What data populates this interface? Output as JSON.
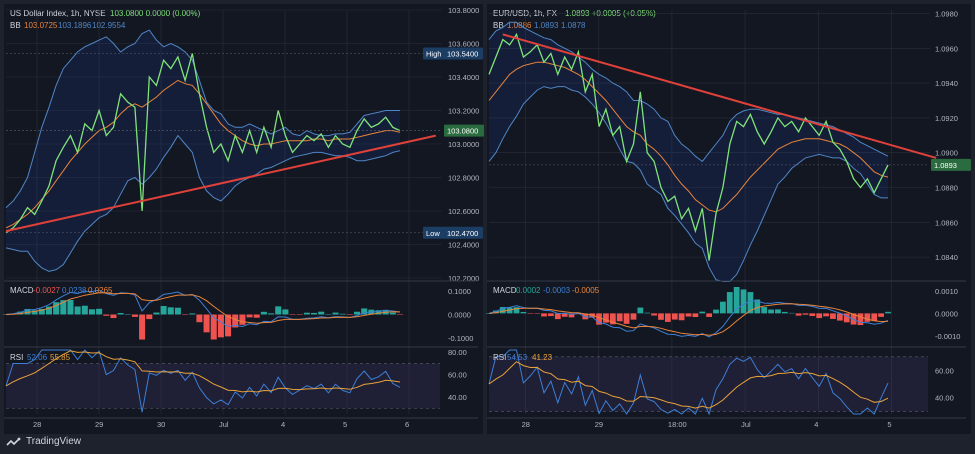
{
  "colors": {
    "bg": "#131722",
    "grid": "#2a2e39",
    "price": "#7fe37a",
    "bb_upper": "#4f86c6",
    "bb_lower": "#4f86c6",
    "bb_basis": "#e8843a",
    "trend": "#e0413a",
    "macd": "#3d7fd6",
    "signal": "#e8843a",
    "hist_pos": "#26a69a",
    "hist_neg": "#ef5350",
    "rsi": "#3d7fd6",
    "rsi_ma": "#e8a23a"
  },
  "watermark": "TradingView",
  "chart_data": [
    {
      "type": "line",
      "title": "US Dollar Index, 1h, NYSE",
      "ohlc": "103.0800  0.0000 (0.00%)",
      "bb_label": "BB",
      "bb_values": [
        "103.0725",
        "103.1896",
        "102.9554"
      ],
      "yticks": [
        "103.8000",
        "103.6000",
        "103.4000",
        "103.2000",
        "103.0000",
        "102.8000",
        "102.6000",
        "102.4000",
        "102.2000"
      ],
      "ylim": [
        102.2,
        103.8
      ],
      "xticks": [
        "28",
        "29",
        "30",
        "Jul",
        "4",
        "5",
        "6"
      ],
      "high_label": "High",
      "high_value": "103.5400",
      "low_label": "Low",
      "low_value": "102.4700",
      "last_value": "103.0800",
      "price": [
        102.47,
        102.5,
        102.55,
        102.62,
        102.58,
        102.66,
        102.75,
        102.9,
        102.98,
        103.05,
        102.95,
        103.12,
        103.08,
        103.2,
        103.05,
        103.1,
        103.3,
        103.25,
        103.22,
        102.6,
        103.4,
        103.35,
        103.5,
        103.45,
        103.52,
        103.38,
        103.54,
        103.3,
        103.1,
        102.95,
        103.0,
        102.9,
        103.05,
        102.95,
        103.08,
        102.95,
        103.1,
        102.98,
        103.2,
        103.05,
        102.95,
        103.0,
        103.05,
        103.02,
        103.06,
        102.98,
        103.05,
        103.0,
        102.98,
        103.08,
        103.15,
        103.1,
        103.12,
        103.16,
        103.1,
        103.08
      ],
      "bb_upper": [
        102.62,
        102.66,
        102.72,
        102.8,
        102.95,
        103.1,
        103.22,
        103.35,
        103.45,
        103.5,
        103.55,
        103.58,
        103.6,
        103.62,
        103.64,
        103.6,
        103.55,
        103.58,
        103.6,
        103.66,
        103.68,
        103.62,
        103.58,
        103.6,
        103.58,
        103.55,
        103.5,
        103.38,
        103.25,
        103.2,
        103.18,
        103.12,
        103.1,
        103.1,
        103.12,
        103.1,
        103.08,
        103.06,
        103.08,
        103.1,
        103.06,
        103.05,
        103.08,
        103.06,
        103.05,
        103.05,
        103.06,
        103.06,
        103.07,
        103.12,
        103.17,
        103.18,
        103.19,
        103.2,
        103.2,
        103.2
      ],
      "bb_basis": [
        102.5,
        102.52,
        102.55,
        102.58,
        102.62,
        102.67,
        102.72,
        102.78,
        102.84,
        102.9,
        102.95,
        103.0,
        103.04,
        103.08,
        103.1,
        103.13,
        103.18,
        103.22,
        103.24,
        103.22,
        103.25,
        103.28,
        103.32,
        103.35,
        103.38,
        103.36,
        103.35,
        103.3,
        103.24,
        103.18,
        103.12,
        103.08,
        103.05,
        103.02,
        103.0,
        102.99,
        103.0,
        103.0,
        103.01,
        103.02,
        103.02,
        103.02,
        103.02,
        103.03,
        103.03,
        103.02,
        103.03,
        103.03,
        103.03,
        103.04,
        103.05,
        103.06,
        103.07,
        103.08,
        103.08,
        103.07
      ],
      "bb_lower": [
        102.38,
        102.37,
        102.36,
        102.36,
        102.3,
        102.26,
        102.24,
        102.25,
        102.28,
        102.35,
        102.42,
        102.48,
        102.52,
        102.56,
        102.58,
        102.62,
        102.7,
        102.78,
        102.8,
        102.76,
        102.8,
        102.85,
        102.92,
        102.98,
        103.05,
        103.0,
        102.95,
        102.8,
        102.72,
        102.68,
        102.66,
        102.7,
        102.75,
        102.78,
        102.8,
        102.82,
        102.85,
        102.86,
        102.88,
        102.9,
        102.92,
        102.93,
        102.94,
        102.95,
        102.95,
        102.94,
        102.93,
        102.93,
        102.92,
        102.9,
        102.9,
        102.91,
        102.92,
        102.93,
        102.95,
        102.96
      ],
      "trend": [
        [
          0,
          102.48
        ],
        [
          60,
          103.05
        ]
      ],
      "macd": {
        "label": "MACD",
        "values": [
          "-0.0027",
          "0.0238",
          "0.0265"
        ],
        "yticks": [
          "0.1000",
          "0.0000",
          "-0.1000"
        ],
        "ylim": [
          -0.13,
          0.13
        ]
      },
      "rsi": {
        "label": "RSI",
        "values": [
          "52.06",
          "55.85"
        ],
        "yticks": [
          "80.00",
          "60.00",
          "40.00"
        ],
        "ylim": [
          25,
          82
        ]
      }
    },
    {
      "type": "line",
      "title": "EUR/USD, 1h, FX",
      "ohlc": "1.0893  +0.0005 (+0.05%)",
      "bb_label": "BB",
      "bb_values": [
        "1.0886",
        "1.0893",
        "1.0878"
      ],
      "yticks": [
        "1.0980",
        "1.0960",
        "1.0940",
        "1.0920",
        "1.0900",
        "1.0880",
        "1.0860",
        "1.0840"
      ],
      "ylim": [
        1.0828,
        1.0982
      ],
      "xticks": [
        "28",
        "29",
        "18:00",
        "Jul",
        "4",
        "5"
      ],
      "last_value": "1.0893",
      "price": [
        1.0945,
        1.0955,
        1.0965,
        1.0962,
        1.0968,
        1.0955,
        1.0958,
        1.0962,
        1.0952,
        1.0957,
        1.0945,
        1.0955,
        1.0948,
        1.0958,
        1.0935,
        1.0945,
        1.0915,
        1.0925,
        1.091,
        1.0915,
        1.0895,
        1.0905,
        1.0935,
        1.09,
        1.0895,
        1.088,
        1.0872,
        1.0875,
        1.0862,
        1.0868,
        1.0855,
        1.0868,
        1.0838,
        1.0865,
        1.088,
        1.0905,
        1.0918,
        1.0915,
        1.0922,
        1.0912,
        1.0905,
        1.0912,
        1.092,
        1.0915,
        1.0918,
        1.0912,
        1.092,
        1.0915,
        1.091,
        1.0918,
        1.0906,
        1.0902,
        1.0895,
        1.0885,
        1.088,
        1.0885,
        1.0877,
        1.0885,
        1.0893
      ],
      "bb_upper": [
        1.0965,
        1.097,
        1.0972,
        1.0975,
        1.0975,
        1.0972,
        1.097,
        1.0968,
        1.0966,
        1.0965,
        1.0962,
        1.096,
        1.0958,
        1.0955,
        1.0952,
        1.0948,
        1.0945,
        1.0943,
        1.094,
        1.0938,
        1.0935,
        1.093,
        1.093,
        1.0928,
        1.0925,
        1.092,
        1.0918,
        1.091,
        1.0905,
        1.0902,
        1.0898,
        1.0895,
        1.09,
        1.0905,
        1.091,
        1.0918,
        1.0922,
        1.0924,
        1.0925,
        1.0925,
        1.0924,
        1.0923,
        1.0922,
        1.0922,
        1.0921,
        1.092,
        1.0919,
        1.0918,
        1.0917,
        1.0916,
        1.0915,
        1.0913,
        1.0911,
        1.0909,
        1.0906,
        1.0904,
        1.0902,
        1.09,
        1.0898
      ],
      "bb_basis": [
        1.093,
        1.0935,
        1.094,
        1.0945,
        1.0948,
        1.095,
        1.0951,
        1.0952,
        1.0952,
        1.0951,
        1.095,
        1.0949,
        1.0947,
        1.0945,
        1.0942,
        1.0938,
        1.0934,
        1.093,
        1.0925,
        1.092,
        1.0915,
        1.0912,
        1.091,
        1.0905,
        1.0902,
        1.0898,
        1.0893,
        1.0887,
        1.0882,
        1.0878,
        1.0873,
        1.087,
        1.0867,
        1.0866,
        1.0868,
        1.0872,
        1.0876,
        1.0881,
        1.0886,
        1.089,
        1.0894,
        1.0898,
        1.0902,
        1.0904,
        1.0906,
        1.0907,
        1.0908,
        1.0908,
        1.0908,
        1.0907,
        1.0906,
        1.0905,
        1.0903,
        1.09,
        1.0897,
        1.0893,
        1.0889,
        1.0887,
        1.0886
      ],
      "bb_lower": [
        1.0895,
        1.09,
        1.0908,
        1.0915,
        1.0921,
        1.0928,
        1.0932,
        1.0936,
        1.0938,
        1.0937,
        1.0938,
        1.0938,
        1.0936,
        1.0935,
        1.0932,
        1.0928,
        1.0923,
        1.0917,
        1.091,
        1.0902,
        1.0895,
        1.0894,
        1.089,
        1.0882,
        1.0879,
        1.0876,
        1.0868,
        1.0864,
        1.0859,
        1.0854,
        1.0848,
        1.0845,
        1.0834,
        1.0827,
        1.0826,
        1.0826,
        1.083,
        1.0838,
        1.0847,
        1.0855,
        1.0864,
        1.0873,
        1.0882,
        1.0886,
        1.0891,
        1.0894,
        1.0897,
        1.0898,
        1.0899,
        1.0898,
        1.0897,
        1.0897,
        1.0895,
        1.0891,
        1.0888,
        1.0882,
        1.0876,
        1.0874,
        1.0874
      ],
      "trend": [
        [
          2,
          1.0968
        ],
        [
          65,
          1.0897
        ]
      ],
      "macd": {
        "label": "MACD",
        "values": [
          "0.0002",
          "-0.0003",
          "-0.0005"
        ],
        "yticks": [
          "0.0010",
          "0.0000",
          "-0.0010"
        ],
        "ylim": [
          -0.0014,
          0.0013
        ]
      },
      "rsi": {
        "label": "RSI",
        "values": [
          "54.53",
          "41.23"
        ],
        "yticks": [
          "60.00",
          "40.00"
        ],
        "ylim": [
          28,
          75
        ]
      }
    }
  ]
}
